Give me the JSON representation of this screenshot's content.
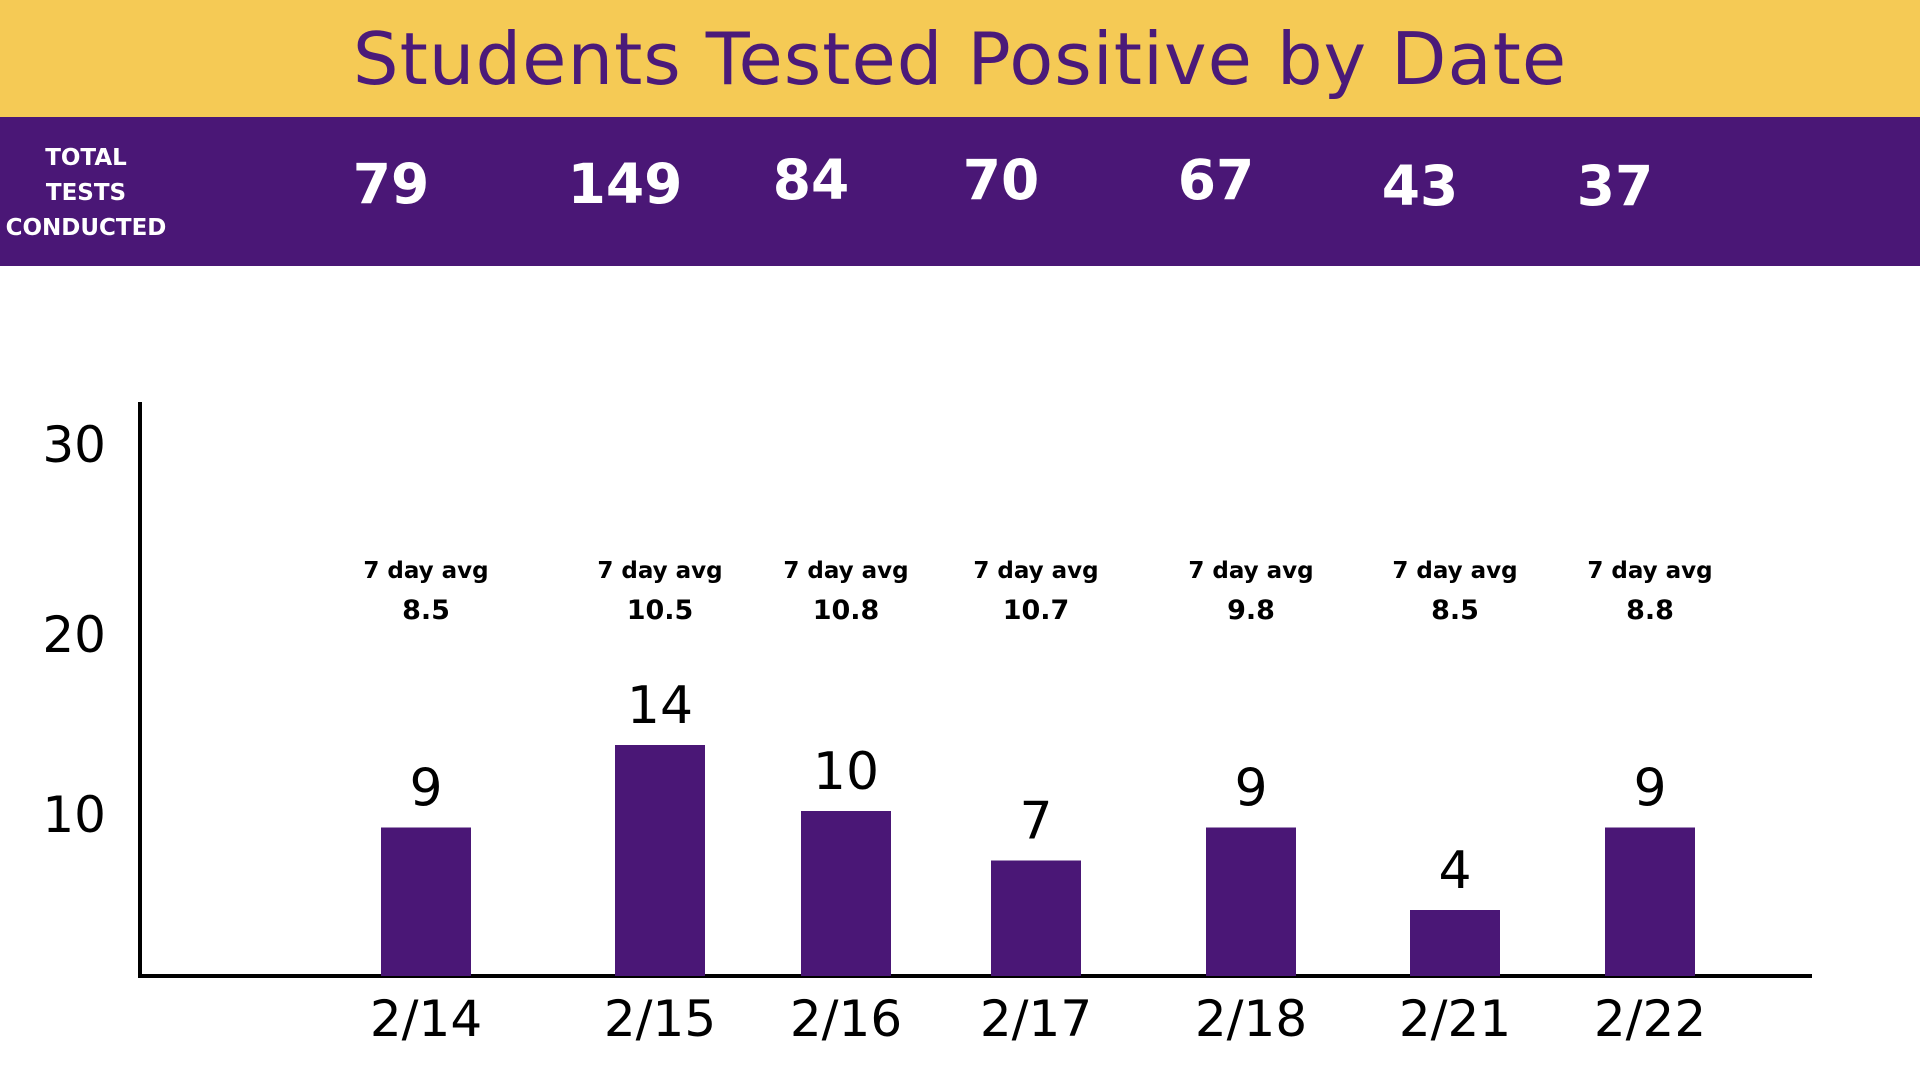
{
  "colors": {
    "title_band": "#f5ca55",
    "title_text": "#4b1a79",
    "tests_band": "#4a1776",
    "bar": "#4a1776",
    "axis": "#000000",
    "text": "#000000"
  },
  "header": {
    "title": "Students Tested Positive by Date"
  },
  "tests": {
    "label": "TOTAL\nTESTS\nCONDUCTED",
    "values": [
      "79",
      "149",
      "84",
      "70",
      "67",
      "43",
      "37"
    ]
  },
  "chart_data": {
    "type": "bar",
    "title": "Students Tested Positive by Date",
    "categories": [
      "2/14",
      "2/15",
      "2/16",
      "2/17",
      "2/18",
      "2/21",
      "2/22"
    ],
    "values": [
      9,
      14,
      10,
      7,
      9,
      4,
      9
    ],
    "data_labels": [
      "9",
      "14",
      "10",
      "7",
      "9",
      "4",
      "9"
    ],
    "avg_label": "7 day avg",
    "avg_values": [
      "8.5",
      "10.5",
      "10.8",
      "10.7",
      "9.8",
      "8.5",
      "8.8"
    ],
    "yticks": [
      "30",
      "20",
      "10"
    ],
    "xlabel": "",
    "ylabel": "",
    "grid": false,
    "legend": "none"
  }
}
